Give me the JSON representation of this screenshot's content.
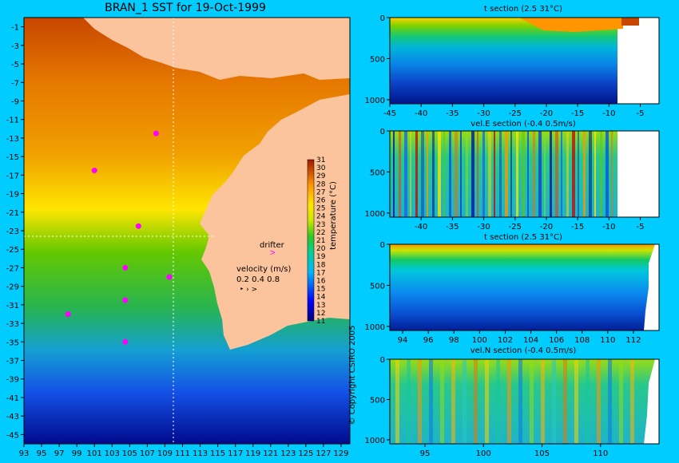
{
  "chart_data": [
    {
      "type": "heatmap",
      "title": "BRAN_1 SST for 19-Oct-1999",
      "x_ticks": [
        "93",
        "95",
        "97",
        "99",
        "101",
        "103",
        "105",
        "107",
        "109",
        "111",
        "113",
        "115",
        "117",
        "119",
        "121",
        "123",
        "125",
        "127",
        "129"
      ],
      "y_ticks": [
        "-1",
        "-3",
        "-5",
        "-7",
        "-9",
        "-11",
        "-13",
        "-15",
        "-17",
        "-19",
        "-21",
        "-23",
        "-25",
        "-27",
        "-29",
        "-31",
        "-33",
        "-35",
        "-37",
        "-39",
        "-41",
        "-43",
        "-45"
      ],
      "xlim": [
        93,
        130
      ],
      "ylim": [
        -46,
        0
      ],
      "colorbar": {
        "label": "temperature (°C)",
        "ticks": [
          "31",
          "30",
          "29",
          "28",
          "27",
          "26",
          "25",
          "24",
          "23",
          "22",
          "21",
          "20",
          "19",
          "18",
          "17",
          "16",
          "15",
          "14",
          "13",
          "12",
          "11"
        ],
        "range": [
          11,
          31
        ]
      },
      "legend": {
        "drifter_label": "drifter",
        "velocity_label": "velocity (m/s)",
        "velocity_scale": "0.2 0.4 0.8"
      },
      "drifter_positions": [
        [
          108,
          -12.5
        ],
        [
          101,
          -16.5
        ],
        [
          106,
          -22.5
        ],
        [
          104.5,
          -27
        ],
        [
          109.5,
          -28
        ],
        [
          104.5,
          -30.5
        ],
        [
          98,
          -32
        ],
        [
          104.5,
          -35
        ]
      ],
      "section_lon": 110.5,
      "section_lat": -23,
      "copyright": "© Copyright CSIRO 2005"
    },
    {
      "type": "heatmap",
      "title": "t section (2.5      31°C)",
      "x_ticks": [
        "-45",
        "-40",
        "-35",
        "-30",
        "-25",
        "-20",
        "-15",
        "-10",
        "-5"
      ],
      "y_ticks": [
        "0",
        "500",
        "1000"
      ],
      "xlim": [
        -45,
        -2
      ],
      "ylim": [
        0,
        1050
      ]
    },
    {
      "type": "heatmap",
      "title": "vel.E section (-0.4      0.5m/s)",
      "x_ticks": [
        "-40",
        "-35",
        "-30",
        "-25",
        "-20",
        "-15",
        "-10",
        "-5"
      ],
      "y_ticks": [
        "0",
        "500",
        "1000"
      ],
      "xlim": [
        -45,
        -2
      ],
      "ylim": [
        0,
        1050
      ]
    },
    {
      "type": "heatmap",
      "title": "t section (2.5      31°C)",
      "x_ticks": [
        "94",
        "96",
        "98",
        "100",
        "102",
        "104",
        "106",
        "108",
        "110",
        "112"
      ],
      "y_ticks": [
        "0",
        "500",
        "1000"
      ],
      "xlim": [
        93,
        114
      ],
      "ylim": [
        0,
        1050
      ]
    },
    {
      "type": "heatmap",
      "title": "vel.N section (-0.4      0.5m/s)",
      "x_ticks": [
        "95",
        "100",
        "105",
        "110"
      ],
      "y_ticks": [
        "0",
        "500",
        "1000"
      ],
      "xlim": [
        92,
        115
      ],
      "ylim": [
        0,
        1050
      ]
    }
  ]
}
